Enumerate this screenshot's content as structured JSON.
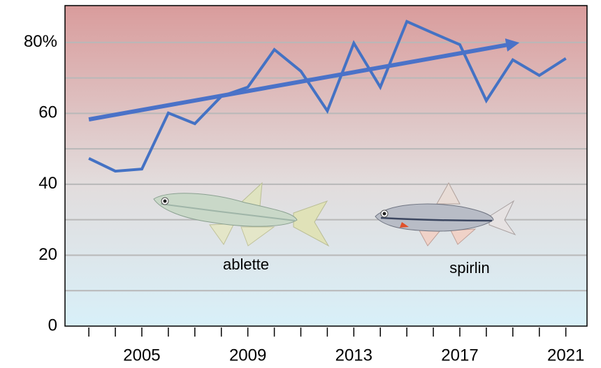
{
  "chart_data": {
    "type": "line",
    "x": [
      2003,
      2004,
      2005,
      2006,
      2007,
      2008,
      2009,
      2010,
      2011,
      2012,
      2013,
      2014,
      2015,
      2016,
      2017,
      2018,
      2019,
      2020,
      2021
    ],
    "series": [
      {
        "color": "#4472c4",
        "values": [
          47.3,
          43.7,
          44.3,
          60.1,
          57.1,
          64.8,
          67.4,
          78.0,
          71.9,
          60.7,
          79.8,
          67.4,
          85.9,
          82.6,
          79.4,
          63.6,
          75.1,
          70.7,
          75.5
        ]
      }
    ],
    "trend": {
      "color": "#4a72c8",
      "x": [
        2003,
        2019
      ],
      "values": [
        58.3,
        79.6
      ]
    },
    "xlim": [
      2002.1,
      2021.8
    ],
    "xticks": [
      2005,
      2009,
      2013,
      2017,
      2021
    ],
    "xminor_ticks": [
      2003,
      2004,
      2005,
      2006,
      2007,
      2008,
      2009,
      2010,
      2011,
      2012,
      2013,
      2014,
      2015,
      2016,
      2017,
      2018,
      2019,
      2020,
      2021
    ],
    "ylim": [
      0,
      90.4
    ],
    "yticks": [
      0,
      20,
      40,
      60,
      {
        "value": 80,
        "label": "80%"
      }
    ],
    "grid_lines": [
      10,
      20,
      30,
      40,
      50,
      60,
      70,
      80
    ],
    "grid": true,
    "annotations": [
      "ablette",
      "spirlin"
    ]
  }
}
